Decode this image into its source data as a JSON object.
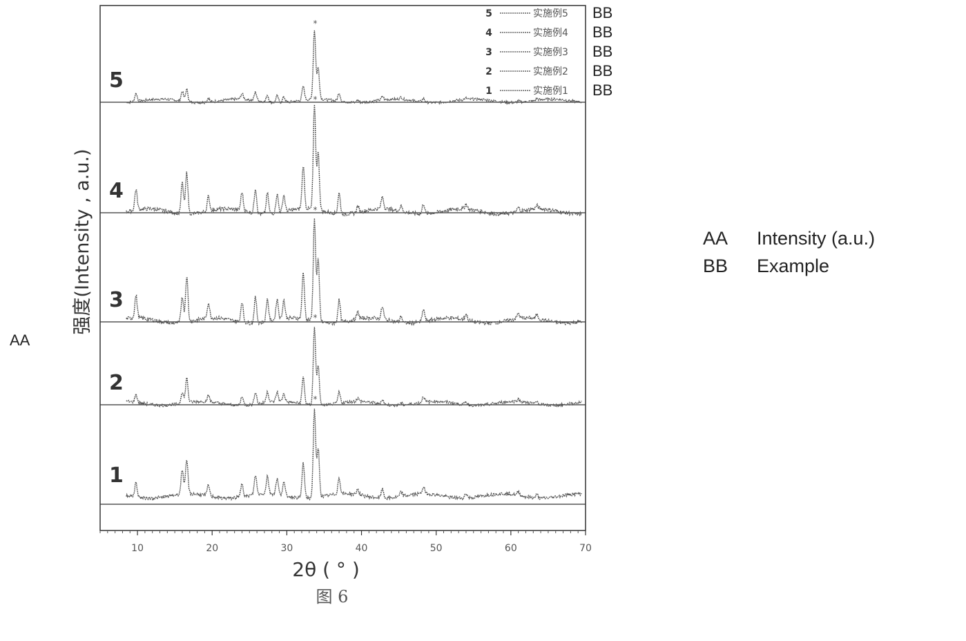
{
  "side_label": "AA",
  "glossary": [
    {
      "code": "AA",
      "meaning": "Intensity (a.u.)"
    },
    {
      "code": "BB",
      "meaning": "Example"
    }
  ],
  "caption": "图 6",
  "chart_data": {
    "type": "line",
    "xlabel": "2θ ( ° )",
    "ylabel": "强度(Intensity , a.u.)",
    "xlim": [
      5,
      70
    ],
    "xticks": [
      10,
      20,
      30,
      40,
      50,
      60,
      70
    ],
    "grid": false,
    "legend_position": "top-right",
    "legend": [
      {
        "index": "5",
        "label": "实施例5",
        "suffix": "BB"
      },
      {
        "index": "4",
        "label": "实施例4",
        "suffix": "BB"
      },
      {
        "index": "3",
        "label": "实施例3",
        "suffix": "BB"
      },
      {
        "index": "2",
        "label": "实施例2",
        "suffix": "BB"
      },
      {
        "index": "1",
        "label": "实施例1",
        "suffix": "BB"
      }
    ],
    "peak_positions": [
      9.8,
      16.0,
      16.6,
      19.5,
      24.0,
      25.8,
      27.4,
      28.7,
      29.6,
      32.2,
      33.7,
      34.2,
      37.0,
      39.5,
      42.8,
      45.3,
      48.3,
      54.0,
      61.0,
      63.5
    ],
    "peak_marker_x": 33.8,
    "series": [
      {
        "label": "5",
        "relative_intensity": [
          0.12,
          0.14,
          0.18,
          0.06,
          0.08,
          0.12,
          0.1,
          0.1,
          0.08,
          0.2,
          1.0,
          0.45,
          0.12,
          0.04,
          0.05,
          0.03,
          0.05,
          0.02,
          0.02,
          0.02
        ]
      },
      {
        "label": "4",
        "relative_intensity": [
          0.2,
          0.3,
          0.4,
          0.14,
          0.18,
          0.24,
          0.2,
          0.18,
          0.16,
          0.42,
          1.0,
          0.55,
          0.2,
          0.06,
          0.12,
          0.05,
          0.1,
          0.05,
          0.04,
          0.03
        ]
      },
      {
        "label": "3",
        "relative_intensity": [
          0.22,
          0.26,
          0.45,
          0.15,
          0.2,
          0.25,
          0.22,
          0.2,
          0.18,
          0.45,
          1.0,
          0.6,
          0.22,
          0.07,
          0.12,
          0.06,
          0.12,
          0.06,
          0.05,
          0.04
        ]
      },
      {
        "label": "2",
        "relative_intensity": [
          0.1,
          0.15,
          0.32,
          0.08,
          0.12,
          0.16,
          0.14,
          0.12,
          0.1,
          0.35,
          1.0,
          0.5,
          0.14,
          0.04,
          0.06,
          0.03,
          0.08,
          0.04,
          0.03,
          0.03
        ]
      },
      {
        "label": "1",
        "relative_intensity": [
          0.16,
          0.28,
          0.38,
          0.12,
          0.16,
          0.22,
          0.2,
          0.18,
          0.15,
          0.4,
          1.0,
          0.55,
          0.18,
          0.06,
          0.1,
          0.05,
          0.08,
          0.05,
          0.04,
          0.04
        ]
      }
    ]
  }
}
